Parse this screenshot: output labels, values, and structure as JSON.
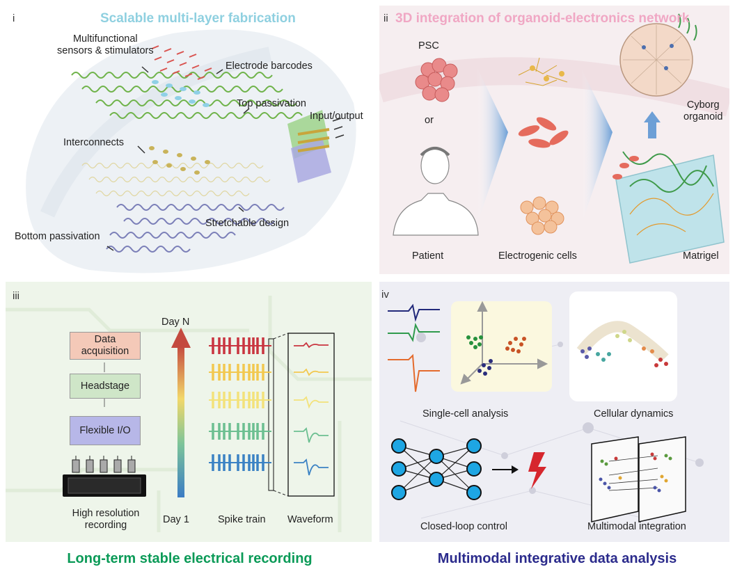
{
  "panel_i": {
    "numeral": "i",
    "title": "Scalable multi-layer fabrication",
    "labels": {
      "sensors": "Multifunctional\nsensors & stimulators",
      "barcodes": "Electrode barcodes",
      "top_passivation": "Top passivation",
      "input_output": "Input/output",
      "interconnects": "Interconnects",
      "stretchable": "Stretchable design",
      "bottom_passivation": "Bottom passivation"
    }
  },
  "panel_ii": {
    "numeral": "ii",
    "title": "3D integration of organoid-electronics network",
    "labels": {
      "psc": "PSC",
      "or": "or",
      "patient": "Patient",
      "electrogenic": "Electrogenic cells",
      "cyborg": "Cyborg\norganoid",
      "matrigel": "Matrigel"
    }
  },
  "panel_iii": {
    "numeral": "iii",
    "boxes": {
      "data_acq": "Data\nacquisition",
      "headstage": "Headstage",
      "flexible_io": "Flexible I/O"
    },
    "labels": {
      "high_res": "High resolution\nrecording",
      "day_n": "Day N",
      "day_1": "Day 1",
      "spike_train": "Spike train",
      "waveform": "Waveform"
    },
    "colors": [
      "#c9343f",
      "#f2c84f",
      "#f3e27a",
      "#6cbf91",
      "#3b82c4"
    ],
    "title": "Long-term stable electrical recording",
    "title_color": "#0a9a57"
  },
  "panel_iv": {
    "numeral": "iv",
    "labels": {
      "single_cell": "Single-cell analysis",
      "cellular_dynamics": "Cellular dynamics",
      "closed_loop": "Closed-loop control",
      "multimodal": "Multimodal integration"
    },
    "title": "Multimodal integrative data analysis",
    "title_color": "#2b2b8c"
  },
  "colors": {
    "panel_i_title": "#8fd0e0",
    "panel_ii_title": "#f0a7c4",
    "panel_bg_i": "#eef2f5",
    "panel_bg_ii": "#f6eef0",
    "panel_bg_iii": "#eef5ea",
    "panel_bg_iv": "#eeeef4"
  }
}
